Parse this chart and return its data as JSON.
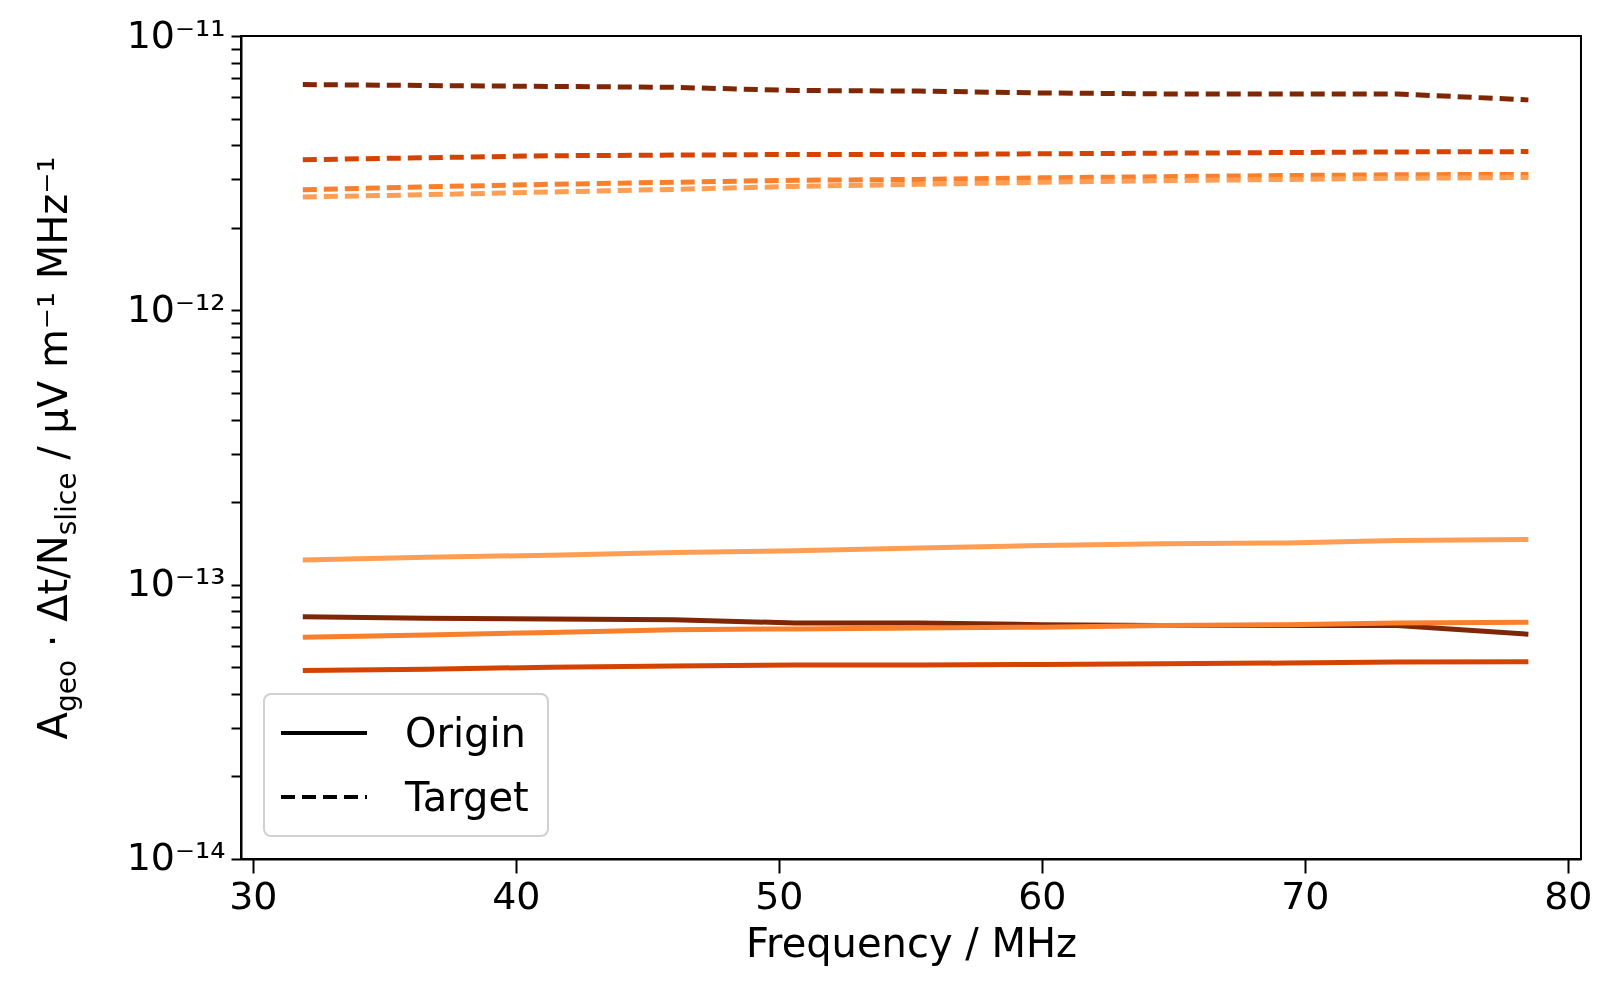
{
  "chart_data": {
    "type": "line",
    "xlabel": "Frequency / MHz",
    "ylabel": "A$_{geo}$ · Δt/N$_{slice}$ / μV m⁻¹ MHz⁻¹",
    "log": "y",
    "grid": false,
    "legend": "bottom left",
    "x": [
      31.9,
      36.6,
      41.3,
      46.0,
      50.6,
      55.3,
      60.0,
      64.6,
      69.3,
      73.5,
      78.5
    ],
    "xlim": [
      29.55,
      80.5
    ],
    "xticks": [
      30,
      40,
      50,
      60,
      70,
      80
    ],
    "ylim": [
      1e-14,
      1e-11
    ],
    "yticks": [
      {
        "value": 1e-14,
        "label": "10⁻¹⁴"
      },
      {
        "value": 2e-14,
        "label": null
      },
      {
        "value": 3e-14,
        "label": null
      },
      {
        "value": 4e-14,
        "label": null
      },
      {
        "value": 5e-14,
        "label": null
      },
      {
        "value": 6e-14,
        "label": null
      },
      {
        "value": 7e-14,
        "label": null
      },
      {
        "value": 8e-14,
        "label": null
      },
      {
        "value": 9e-14,
        "label": null
      },
      {
        "value": 1e-13,
        "label": "10⁻¹³"
      },
      {
        "value": 2e-13,
        "label": null
      },
      {
        "value": 3e-13,
        "label": null
      },
      {
        "value": 4e-13,
        "label": null
      },
      {
        "value": 5e-13,
        "label": null
      },
      {
        "value": 6e-13,
        "label": null
      },
      {
        "value": 7e-13,
        "label": null
      },
      {
        "value": 8e-13,
        "label": null
      },
      {
        "value": 9e-13,
        "label": null
      },
      {
        "value": 1e-12,
        "label": "10⁻¹²"
      },
      {
        "value": 2e-12,
        "label": null
      },
      {
        "value": 3e-12,
        "label": null
      },
      {
        "value": 4e-12,
        "label": null
      },
      {
        "value": 5e-12,
        "label": null
      },
      {
        "value": 6e-12,
        "label": null
      },
      {
        "value": 7e-12,
        "label": null
      },
      {
        "value": 8e-12,
        "label": null
      },
      {
        "value": 9e-12,
        "label": null
      },
      {
        "value": 1e-11,
        "label": "10⁻¹¹"
      }
    ],
    "series": [
      {
        "color": "#7f2704",
        "line_style": "dashed",
        "values": [
          6.65e-12,
          6.6e-12,
          6.55e-12,
          6.5e-12,
          6.33e-12,
          6.3e-12,
          6.2e-12,
          6.15e-12,
          6.15e-12,
          6.15e-12,
          5.85e-12
        ]
      },
      {
        "color": "#d54302",
        "line_style": "dashed",
        "values": [
          3.54e-12,
          3.6e-12,
          3.66e-12,
          3.68e-12,
          3.7e-12,
          3.7e-12,
          3.72e-12,
          3.74e-12,
          3.76e-12,
          3.78e-12,
          3.79e-12
        ]
      },
      {
        "color": "#f87f2c",
        "line_style": "dashed",
        "values": [
          2.75e-12,
          2.82e-12,
          2.88e-12,
          2.93e-12,
          2.98e-12,
          3e-12,
          3.04e-12,
          3.07e-12,
          3.1e-12,
          3.12e-12,
          3.13e-12
        ]
      },
      {
        "color": "#fd9e54",
        "line_style": "dashed",
        "values": [
          2.59e-12,
          2.64e-12,
          2.7e-12,
          2.76e-12,
          2.83e-12,
          2.88e-12,
          2.93e-12,
          2.97e-12,
          3e-12,
          3.03e-12,
          3.05e-12
        ]
      },
      {
        "color": "#fd9e54",
        "line_style": "solid",
        "values": [
          1.23e-13,
          1.26e-13,
          1.28e-13,
          1.31e-13,
          1.33e-13,
          1.36e-13,
          1.39e-13,
          1.41e-13,
          1.42e-13,
          1.45e-13,
          1.46e-13
        ]
      },
      {
        "color": "#7f2704",
        "line_style": "solid",
        "values": [
          7.64e-14,
          7.55e-14,
          7.5e-14,
          7.45e-14,
          7.25e-14,
          7.25e-14,
          7.15e-14,
          7.1e-14,
          7.1e-14,
          7.1e-14,
          6.6e-14
        ]
      },
      {
        "color": "#f87f2c",
        "line_style": "solid",
        "values": [
          6.43e-14,
          6.55e-14,
          6.7e-14,
          6.85e-14,
          6.9e-14,
          6.95e-14,
          7e-14,
          7.1e-14,
          7.15e-14,
          7.25e-14,
          7.3e-14
        ]
      },
      {
        "color": "#d54302",
        "line_style": "solid",
        "values": [
          4.87e-14,
          4.92e-14,
          5e-14,
          5.05e-14,
          5.1e-14,
          5.1e-14,
          5.12e-14,
          5.15e-14,
          5.18e-14,
          5.22e-14,
          5.24e-14
        ]
      },
      {
        "name": "Origin",
        "color": "#000000",
        "line_style": "solid",
        "values": [
          null,
          null,
          null,
          null,
          null,
          null,
          null,
          null,
          null,
          null,
          null
        ]
      },
      {
        "name": "Target",
        "color": "#000000",
        "line_style": "dashed",
        "values": [
          null,
          null,
          null,
          null,
          null,
          null,
          null,
          null,
          null,
          null,
          null
        ]
      }
    ]
  }
}
